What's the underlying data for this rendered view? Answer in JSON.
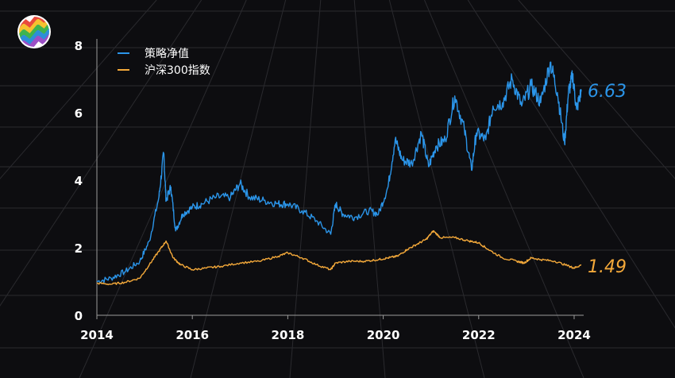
{
  "colors": {
    "background": "#0d0d10",
    "grid": "#2a2a2e",
    "axis": "#9a9a9a",
    "strategy": "#2b95e9",
    "index": "#f4a93a",
    "logo": [
      "#e94b3c",
      "#f6c12f",
      "#3fb34f",
      "#2c8fd8",
      "#9b4fc6"
    ]
  },
  "logo": {
    "icon": "rainbow-wave-logo-icon"
  },
  "chart_data": {
    "type": "line",
    "title": "",
    "xlabel": "",
    "ylabel": "",
    "xlim": [
      2014.0,
      2024.2
    ],
    "ylim": [
      0,
      8
    ],
    "xticks": [
      "2014",
      "2016",
      "2018",
      "2020",
      "2022",
      "2024"
    ],
    "yticks": [
      "0",
      "2",
      "4",
      "6",
      "8"
    ],
    "grid": true,
    "legend_position": "top-left",
    "series": [
      {
        "name": "策略净值",
        "color": "#2b95e9",
        "end_label": "6.63",
        "x": [
          2014.0,
          2014.3,
          2014.6,
          2014.9,
          2015.1,
          2015.3,
          2015.4,
          2015.45,
          2015.55,
          2015.65,
          2015.8,
          2016.0,
          2016.2,
          2016.5,
          2016.8,
          2017.0,
          2017.2,
          2017.5,
          2017.8,
          2018.0,
          2018.3,
          2018.6,
          2018.9,
          2019.0,
          2019.15,
          2019.4,
          2019.7,
          2019.9,
          2020.1,
          2020.25,
          2020.4,
          2020.6,
          2020.8,
          2020.95,
          2021.1,
          2021.3,
          2021.5,
          2021.7,
          2021.85,
          2021.95,
          2022.15,
          2022.3,
          2022.5,
          2022.7,
          2022.9,
          2023.1,
          2023.3,
          2023.5,
          2023.65,
          2023.8,
          2023.88,
          2023.97,
          2024.05,
          2024.15
        ],
        "y": [
          1.0,
          1.1,
          1.3,
          1.6,
          2.2,
          3.5,
          4.8,
          3.4,
          3.8,
          2.5,
          3.0,
          3.2,
          3.3,
          3.5,
          3.5,
          3.9,
          3.5,
          3.4,
          3.3,
          3.3,
          3.1,
          2.8,
          2.4,
          3.3,
          3.0,
          2.9,
          3.1,
          3.0,
          3.8,
          5.2,
          4.6,
          4.5,
          5.4,
          4.4,
          5.0,
          5.2,
          6.5,
          5.5,
          4.3,
          5.4,
          5.2,
          6.2,
          6.3,
          7.0,
          6.2,
          6.8,
          6.3,
          7.5,
          6.6,
          5.1,
          6.6,
          7.1,
          6.1,
          6.63
        ]
      },
      {
        "name": "沪深300指数",
        "color": "#f4a93a",
        "end_label": "1.49",
        "x": [
          2014.0,
          2014.3,
          2014.6,
          2014.9,
          2015.1,
          2015.3,
          2015.45,
          2015.6,
          2015.75,
          2016.0,
          2016.3,
          2016.6,
          2017.0,
          2017.4,
          2017.8,
          2018.0,
          2018.3,
          2018.6,
          2018.9,
          2019.0,
          2019.3,
          2019.6,
          2019.9,
          2020.1,
          2020.3,
          2020.5,
          2020.7,
          2020.9,
          2021.05,
          2021.2,
          2021.5,
          2021.8,
          2022.0,
          2022.2,
          2022.5,
          2022.8,
          2022.95,
          2023.1,
          2023.3,
          2023.6,
          2023.9,
          2024.0,
          2024.15
        ],
        "y": [
          0.95,
          0.92,
          0.98,
          1.1,
          1.5,
          1.9,
          2.2,
          1.7,
          1.5,
          1.35,
          1.4,
          1.45,
          1.55,
          1.6,
          1.75,
          1.85,
          1.7,
          1.5,
          1.35,
          1.55,
          1.6,
          1.6,
          1.65,
          1.7,
          1.75,
          1.95,
          2.1,
          2.25,
          2.5,
          2.3,
          2.3,
          2.2,
          2.15,
          1.95,
          1.7,
          1.6,
          1.55,
          1.7,
          1.65,
          1.6,
          1.45,
          1.4,
          1.49
        ]
      }
    ]
  }
}
